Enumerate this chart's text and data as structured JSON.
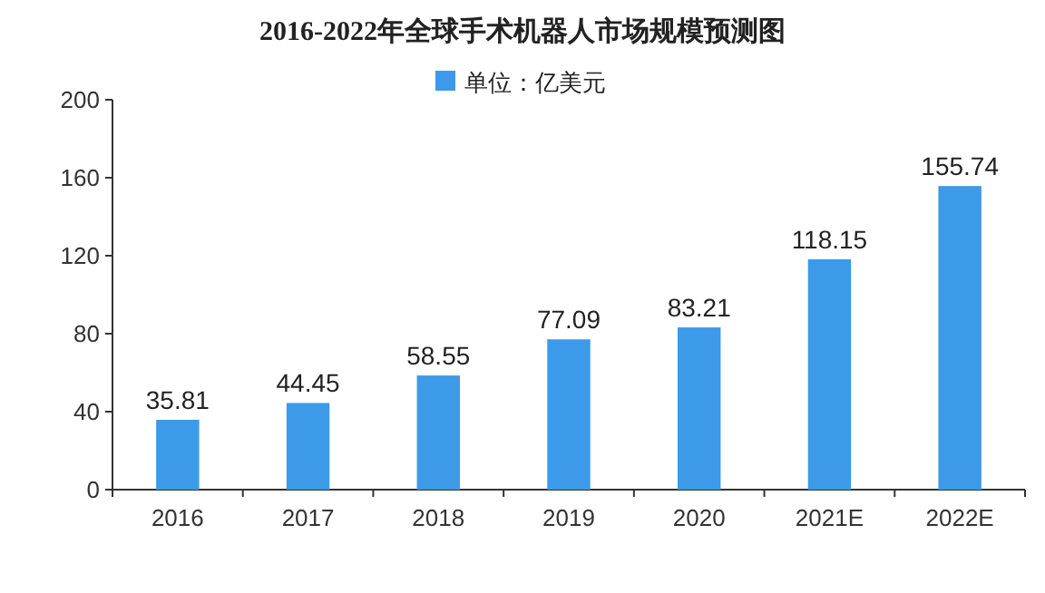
{
  "chart_data": {
    "type": "bar",
    "title": "2016-2022年全球手术机器人市场规模预测图",
    "categories": [
      "2016",
      "2017",
      "2018",
      "2019",
      "2020",
      "2021E",
      "2022E"
    ],
    "series": [
      {
        "name": "单位：亿美元",
        "color": "#3c9ae8",
        "values": [
          35.81,
          44.45,
          58.55,
          77.09,
          83.21,
          118.15,
          155.74
        ]
      }
    ],
    "ylim": [
      0,
      200
    ],
    "yticks": [
      0,
      40,
      80,
      120,
      160,
      200
    ],
    "data_labels": true,
    "legend": "top",
    "grid": false
  }
}
